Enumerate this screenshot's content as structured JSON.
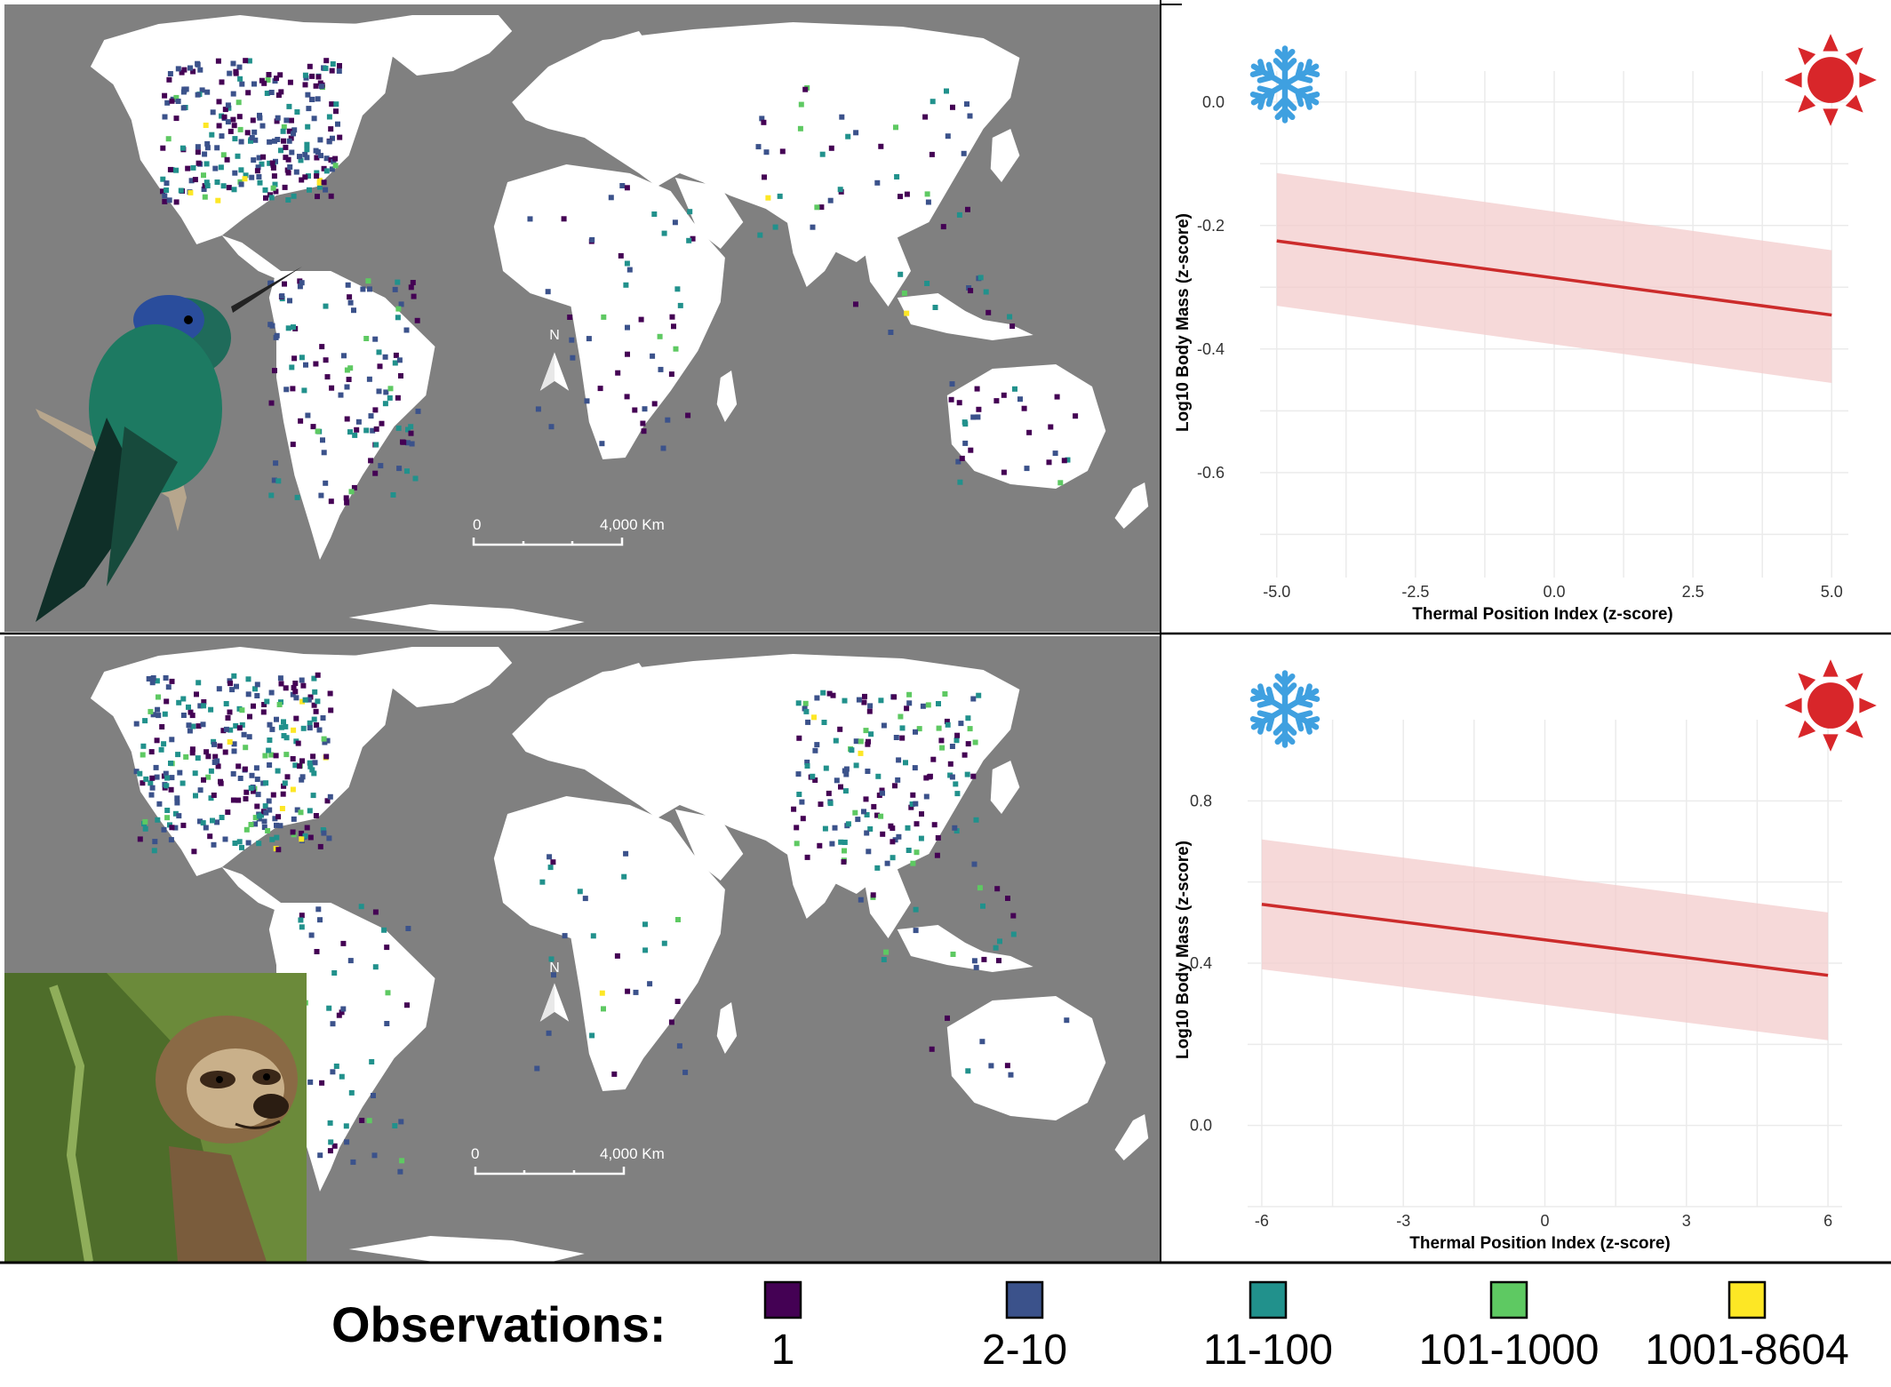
{
  "colors": {
    "ocean": "#808080",
    "land": "#ffffff",
    "fit_line": "#cc2b2b",
    "ci_band": "#f3cccc",
    "grid": "#ebebeb",
    "snowflake": "#3fa0e0",
    "sun": "#d8262a"
  },
  "observation_classes": [
    {
      "label": "1",
      "color": "#440154"
    },
    {
      "label": "2-10",
      "color": "#3b528b"
    },
    {
      "label": "11-100",
      "color": "#21918c"
    },
    {
      "label": "101-1000",
      "color": "#5ec962"
    },
    {
      "label": "1001-8604",
      "color": "#fde725"
    }
  ],
  "legend": {
    "title": "Observations:"
  },
  "maps": [
    {
      "north_label": "N",
      "scale_start": "0",
      "scale_end": "4,000 Km",
      "animal_icon": "hummingbird-photo"
    },
    {
      "north_label": "N",
      "scale_start": "0",
      "scale_end": "4,000 Km",
      "animal_icon": "sloth-photo"
    }
  ],
  "chart_data": [
    {
      "type": "line",
      "xlabel": "Thermal Position Index (z-score)",
      "ylabel": "Log10 Body Mass (z-score)",
      "xlim": [
        -5.3,
        5.3
      ],
      "ylim": [
        -0.77,
        0.05
      ],
      "x_ticks": [
        -5.0,
        -2.5,
        0.0,
        2.5,
        5.0
      ],
      "x_tick_labels": [
        "-5.0",
        "-2.5",
        "0.0",
        "2.5",
        "5.0"
      ],
      "y_ticks": [
        0.0,
        -0.2,
        -0.4,
        -0.6
      ],
      "y_tick_labels": [
        "0.0",
        "-0.2",
        "-0.4",
        "-0.6"
      ],
      "grid": true,
      "series": [
        {
          "x": [
            -5.0,
            5.0
          ],
          "y": [
            -0.225,
            -0.345
          ],
          "ci_lower": [
            -0.33,
            -0.455
          ],
          "ci_upper": [
            -0.115,
            -0.24
          ]
        }
      ],
      "icons": [
        "snowflake-icon",
        "sun-icon"
      ]
    },
    {
      "type": "line",
      "xlabel": "Thermal Position Index (z-score)",
      "ylabel": "Log10 Body Mass (z-score)",
      "xlim": [
        -6.3,
        6.3
      ],
      "ylim": [
        -0.2,
        1.0
      ],
      "x_ticks": [
        -6,
        -3,
        0,
        3,
        6
      ],
      "x_tick_labels": [
        "-6",
        "-3",
        "0",
        "3",
        "6"
      ],
      "y_ticks": [
        0.8,
        0.4,
        0.0
      ],
      "y_tick_labels": [
        "0.8",
        "0.4",
        "0.0"
      ],
      "grid": true,
      "series": [
        {
          "x": [
            -6,
            6
          ],
          "y": [
            0.545,
            0.37
          ],
          "ci_lower": [
            0.385,
            0.21
          ],
          "ci_upper": [
            0.705,
            0.525
          ]
        }
      ],
      "icons": [
        "snowflake-icon",
        "sun-icon"
      ]
    }
  ]
}
